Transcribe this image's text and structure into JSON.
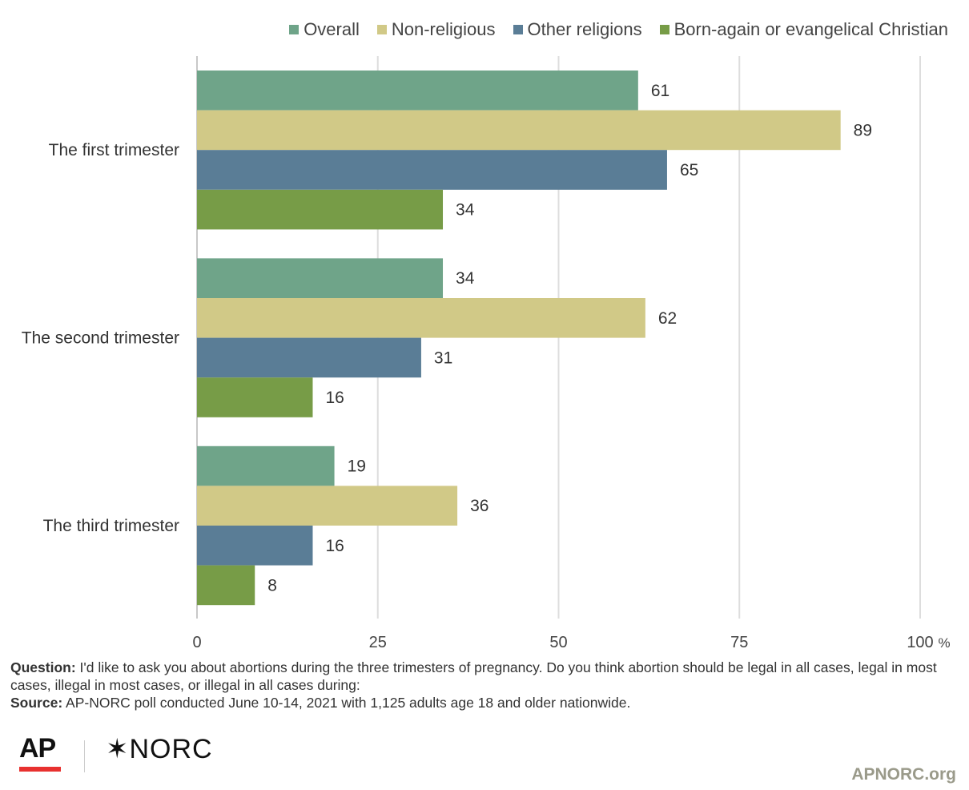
{
  "chart_data": {
    "type": "bar",
    "orientation": "horizontal",
    "categories": [
      "The first trimester",
      "The second trimester",
      "The third trimester"
    ],
    "series": [
      {
        "name": "Overall",
        "color": "#6fa489",
        "values": [
          61,
          34,
          19
        ]
      },
      {
        "name": "Non-religious",
        "color": "#d1c987",
        "values": [
          89,
          62,
          36
        ]
      },
      {
        "name": "Other religions",
        "color": "#5a7d96",
        "values": [
          65,
          31,
          16
        ]
      },
      {
        "name": "Born-again or evangelical Christian",
        "color": "#779c47",
        "values": [
          34,
          16,
          8
        ]
      }
    ],
    "xlim": [
      0,
      100
    ],
    "xticks": [
      0,
      25,
      50,
      75,
      100
    ],
    "xtick_labels": [
      "0",
      "25",
      "50",
      "75",
      "100"
    ],
    "x_unit": "%",
    "grid": true,
    "legend": "top-right",
    "data_labels": true
  },
  "footnote": {
    "question_label": "Question:",
    "question_text": " I'd like to ask you about abortions during the three trimesters of pregnancy. Do you think abortion should be legal in all cases, legal in most cases, illegal in most cases, or illegal in all cases during:",
    "source_label": "Source:",
    "source_text": " AP-NORC poll conducted June 10-14, 2021 with 1,125 adults age 18 and older nationwide."
  },
  "branding": {
    "ap_logo": "AP",
    "norc_logo": "✶NORC",
    "website": "APNORC.org"
  }
}
